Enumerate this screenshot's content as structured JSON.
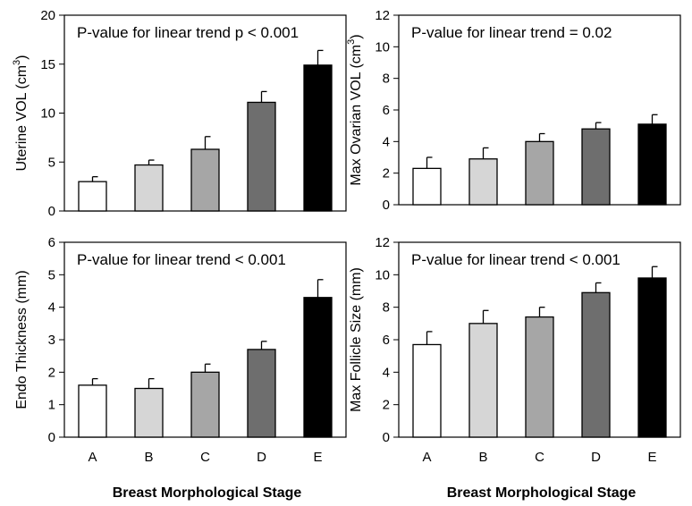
{
  "chart_data": [
    {
      "type": "bar",
      "categories": [
        "A",
        "B",
        "C",
        "D",
        "E"
      ],
      "values": [
        3.0,
        4.7,
        6.3,
        11.1,
        14.9
      ],
      "errors": [
        0.5,
        0.5,
        1.3,
        1.1,
        1.5
      ],
      "ylabel": "Uterine VOL (cm",
      "ylabel_sup": "3",
      "ylabel_end": ")",
      "yticks": [
        "0",
        "5",
        "10",
        "15",
        "20"
      ],
      "ylim": [
        0,
        20
      ],
      "annotation": "P-value for linear trend p < 0.001",
      "xlabel": "",
      "bar_colors": [
        "#ffffff",
        "#d6d6d6",
        "#a6a6a6",
        "#6e6e6e",
        "#000000"
      ]
    },
    {
      "type": "bar",
      "categories": [
        "A",
        "B",
        "C",
        "D",
        "E"
      ],
      "values": [
        2.3,
        2.9,
        4.0,
        4.8,
        5.1
      ],
      "errors": [
        0.7,
        0.7,
        0.5,
        0.4,
        0.6
      ],
      "ylabel": "Max Ovarian VOL (cm",
      "ylabel_sup": "3",
      "ylabel_end": ")",
      "yticks": [
        "0",
        "2",
        "4",
        "6",
        "8",
        "10",
        "12"
      ],
      "ylim": [
        0,
        12
      ],
      "annotation": "P-value for linear trend = 0.02",
      "xlabel": "",
      "bar_colors": [
        "#ffffff",
        "#d6d6d6",
        "#a6a6a6",
        "#6e6e6e",
        "#000000"
      ]
    },
    {
      "type": "bar",
      "categories": [
        "A",
        "B",
        "C",
        "D",
        "E"
      ],
      "values": [
        1.6,
        1.5,
        2.0,
        2.7,
        4.3
      ],
      "errors": [
        0.2,
        0.3,
        0.25,
        0.25,
        0.55
      ],
      "ylabel": "Endo Thickness (mm)",
      "yticks": [
        "0",
        "1",
        "2",
        "3",
        "4",
        "5",
        "6"
      ],
      "ylim": [
        0,
        6
      ],
      "annotation": "P-value for linear trend < 0.001",
      "xlabel": "Breast Morphological Stage",
      "bar_colors": [
        "#ffffff",
        "#d6d6d6",
        "#a6a6a6",
        "#6e6e6e",
        "#000000"
      ]
    },
    {
      "type": "bar",
      "categories": [
        "A",
        "B",
        "C",
        "D",
        "E"
      ],
      "values": [
        5.7,
        7.0,
        7.4,
        8.9,
        9.8
      ],
      "errors": [
        0.8,
        0.8,
        0.6,
        0.6,
        0.7
      ],
      "ylabel": "Max Follicle Size (mm)",
      "yticks": [
        "0",
        "2",
        "4",
        "6",
        "8",
        "10",
        "12"
      ],
      "ylim": [
        0,
        12
      ],
      "annotation": "P-value for linear trend < 0.001",
      "xlabel": "Breast Morphological Stage",
      "bar_colors": [
        "#ffffff",
        "#d6d6d6",
        "#a6a6a6",
        "#6e6e6e",
        "#000000"
      ]
    }
  ]
}
